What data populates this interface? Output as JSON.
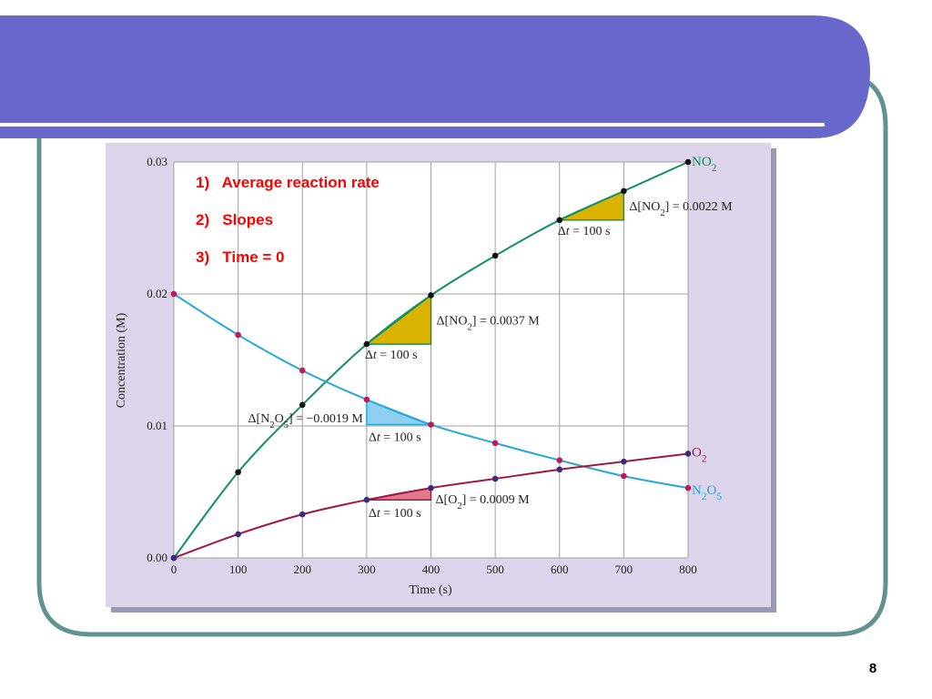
{
  "slide": {
    "notes": [
      "1)   Average reaction rate",
      "2)   Slopes",
      "3)   Time = 0"
    ],
    "page_number": "8"
  },
  "colors": {
    "header": "#6767cc",
    "frame": "#5f9290",
    "panel_bg": "#dcd4ea",
    "plot_bg": "#ffffff",
    "grid": "#a0a0a0",
    "no2": "#139065",
    "n2o5": "#27a7d8",
    "o2": "#a0184a",
    "note_red": "#ff0000",
    "triangle_no2": "#d9b300",
    "triangle_n2o5": "#8fd0f2",
    "triangle_o2": "#e07a8a"
  },
  "chart_data": {
    "type": "line",
    "xlabel": "Time (s)",
    "ylabel": "Concentration (M)",
    "xlim": [
      0,
      800
    ],
    "ylim": [
      0,
      0.03
    ],
    "x_ticks": [
      "0",
      "100",
      "200",
      "300",
      "400",
      "500",
      "600",
      "700",
      "800"
    ],
    "y_ticks": [
      "0.00",
      "0.01",
      "0.02",
      "0.03"
    ],
    "grid": true,
    "series": [
      {
        "name": "NO2",
        "color_key": "no2",
        "x": [
          0,
          100,
          200,
          300,
          400,
          500,
          600,
          700,
          800
        ],
        "values": [
          0.0,
          0.0065,
          0.0116,
          0.0162,
          0.0199,
          0.0229,
          0.0256,
          0.0278,
          0.03
        ]
      },
      {
        "name": "N2O5",
        "color_key": "n2o5",
        "x": [
          0,
          100,
          200,
          300,
          400,
          500,
          600,
          700,
          800
        ],
        "values": [
          0.02,
          0.0169,
          0.0142,
          0.012,
          0.0101,
          0.0087,
          0.0074,
          0.0062,
          0.0053
        ]
      },
      {
        "name": "O2",
        "color_key": "o2",
        "x": [
          0,
          100,
          200,
          300,
          400,
          500,
          600,
          700,
          800
        ],
        "values": [
          0.0,
          0.0018,
          0.0033,
          0.0044,
          0.0053,
          0.006,
          0.0067,
          0.0073,
          0.0079
        ]
      }
    ],
    "annotations": [
      {
        "label": "Δ[NO2] = 0.0022 M",
        "dt_label": "Δt = 100 s",
        "series": "NO2",
        "t0": 600,
        "t1": 700,
        "color_key": "triangle_no2"
      },
      {
        "label": "Δ[NO2] = 0.0037 M",
        "dt_label": "Δt = 100 s",
        "series": "NO2",
        "t0": 300,
        "t1": 400,
        "color_key": "triangle_no2"
      },
      {
        "label": "Δ[N2O5] = −0.0019 M",
        "dt_label": "Δt = 100 s",
        "series": "N2O5",
        "t0": 300,
        "t1": 400,
        "color_key": "triangle_n2o5"
      },
      {
        "label": "Δ[O2] = 0.0009 M",
        "dt_label": "Δt = 100 s",
        "series": "O2",
        "t0": 300,
        "t1": 400,
        "color_key": "triangle_o2"
      }
    ]
  }
}
